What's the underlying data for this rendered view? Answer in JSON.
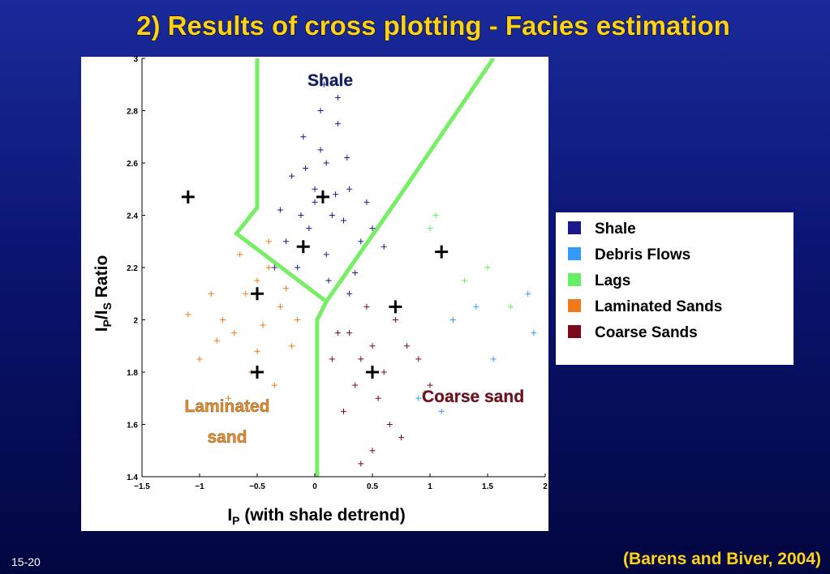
{
  "title": "2) Results of cross plotting - Facies estimation",
  "slide_number": "15-20",
  "citation": "(Barens and Biver, 2004)",
  "chart_data": {
    "type": "scatter",
    "x_label_parts": [
      "I",
      "P",
      " (with shale detrend)"
    ],
    "y_label_parts": [
      "I",
      "P",
      "/I",
      "S",
      " Ratio"
    ],
    "xlim": [
      -1.5,
      2
    ],
    "ylim": [
      1.4,
      3
    ],
    "xticks": [
      {
        "value": -1.5,
        "label": "−1.5"
      },
      {
        "value": -1,
        "label": "−1"
      },
      {
        "value": -0.5,
        "label": "−0.5"
      },
      0,
      0.5,
      1,
      1.5,
      2
    ],
    "yticks": [
      1.4,
      1.6,
      1.8,
      2,
      2.2,
      2.4,
      2.6,
      2.8,
      3
    ],
    "annotations": [
      {
        "lines": [
          "Shale"
        ],
        "color": "#0a1a6a"
      },
      {
        "lines": [
          "Laminated",
          "sand"
        ],
        "color": "#f08a1a"
      },
      {
        "lines": [
          "Coarse sand"
        ],
        "color": "#7a0a1a"
      }
    ],
    "series": [
      {
        "name": "Shale",
        "color": "#1a1a8c",
        "x": [
          0.05,
          -0.1,
          0.2,
          0.1,
          -0.2,
          0.3,
          0.0,
          0.15,
          -0.05,
          0.25,
          -0.3,
          0.4,
          0.1,
          -0.15,
          0.35,
          0.05,
          0.2,
          -0.25,
          0.5,
          0.0,
          0.12,
          -0.08,
          0.28,
          0.6,
          -0.35,
          0.18,
          0.08,
          -0.12,
          0.45,
          0.3
        ],
        "y": [
          2.8,
          2.7,
          2.75,
          2.6,
          2.55,
          2.5,
          2.45,
          2.4,
          2.35,
          2.38,
          2.42,
          2.3,
          2.25,
          2.2,
          2.18,
          2.65,
          2.85,
          2.3,
          2.35,
          2.5,
          2.15,
          2.58,
          2.62,
          2.28,
          2.2,
          2.48,
          2.9,
          2.4,
          2.45,
          2.1
        ]
      },
      {
        "name": "Debris Flows",
        "color": "#3399ff",
        "x": [
          1.2,
          1.55,
          1.85,
          1.9,
          0.9,
          1.1,
          1.4
        ],
        "y": [
          2.0,
          1.85,
          2.1,
          1.95,
          1.7,
          1.65,
          2.05
        ]
      },
      {
        "name": "Lags",
        "color": "#66ee66",
        "x": [
          1.05,
          1.5,
          1.7,
          1.0,
          1.3,
          0.95
        ],
        "y": [
          2.4,
          2.2,
          2.05,
          2.35,
          2.15,
          1.72
        ]
      },
      {
        "name": "Laminated Sands",
        "color": "#f07a1a",
        "x": [
          -0.6,
          -0.4,
          -0.8,
          -0.3,
          -0.7,
          -0.5,
          -0.9,
          -0.2,
          -1.0,
          -0.55,
          -0.35,
          -0.65,
          -0.45,
          -1.1,
          -0.25,
          -0.75,
          -0.5,
          -0.15,
          -0.85,
          -0.4
        ],
        "y": [
          2.1,
          2.2,
          2.0,
          2.05,
          1.95,
          2.15,
          2.1,
          1.9,
          1.85,
          1.8,
          1.75,
          2.25,
          1.98,
          2.02,
          2.12,
          1.7,
          1.88,
          2.0,
          1.92,
          2.3
        ]
      },
      {
        "name": "Coarse Sands",
        "color": "#7a0a1a",
        "x": [
          0.3,
          0.5,
          0.7,
          0.4,
          0.6,
          0.2,
          0.8,
          0.55,
          0.35,
          0.45,
          0.9,
          0.65,
          0.25,
          0.75,
          0.5,
          0.4,
          1.0,
          0.15
        ],
        "y": [
          1.95,
          1.9,
          2.0,
          1.85,
          1.8,
          1.95,
          1.9,
          1.7,
          1.75,
          2.05,
          1.85,
          1.6,
          1.65,
          1.55,
          1.5,
          1.45,
          1.75,
          1.85
        ]
      }
    ],
    "centroids": {
      "color": "#000000",
      "x": [
        -1.1,
        0.07,
        -0.1,
        -0.5,
        0.7,
        1.1,
        -0.5,
        0.5
      ],
      "y": [
        2.47,
        2.47,
        2.28,
        2.1,
        2.05,
        2.26,
        1.8,
        1.8
      ]
    },
    "boundaries": {
      "color": "#77ee66",
      "lines": [
        {
          "x": [
            -0.5,
            -0.5,
            -0.68,
            0.1,
            0.02,
            0.02
          ],
          "y": [
            3,
            2.43,
            2.33,
            2.07,
            2.0,
            1.4
          ]
        },
        {
          "x": [
            1.55,
            0.7,
            0.1
          ],
          "y": [
            3,
            2.45,
            2.07
          ]
        }
      ]
    }
  }
}
